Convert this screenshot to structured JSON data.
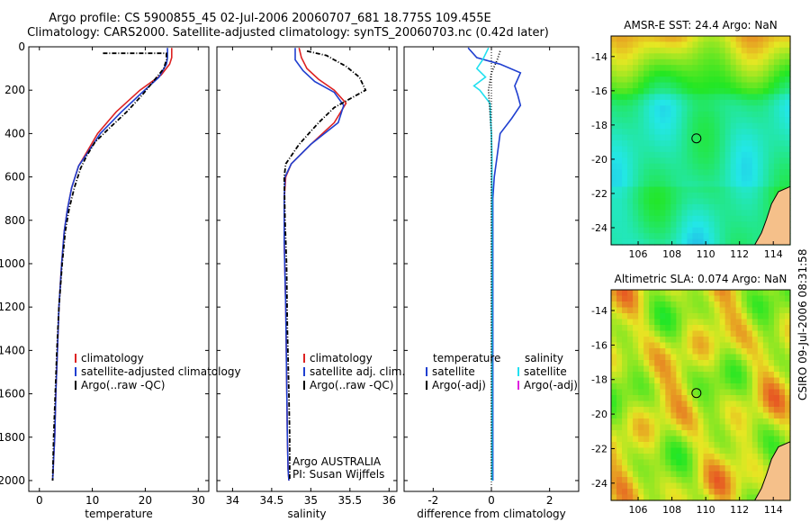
{
  "title": {
    "line1": "Argo profile: CS 5900855_45 02-Jul-2006 20060707_681 18.775S 109.455E",
    "line2": "Climatology: CARS2000. Satellite-adjusted climatology: synTS_20060703.nc (0.42d later)"
  },
  "credit": "CSIRO 09-Jul-2006 08:31:58",
  "colors": {
    "climatology": "#dd2222",
    "satellite": "#1f3fd0",
    "argo": "#000000",
    "satellite_salinity": "#22e0f0",
    "argo_salinity_adj": "#e020e0",
    "land": "#f5c08a"
  },
  "chart_data": [
    {
      "id": "temperature",
      "type": "line",
      "xlabel": "temperature",
      "xlim": [
        -2,
        32
      ],
      "xticks": [
        "0",
        "10",
        "20",
        "30"
      ],
      "xtick_values": [
        0,
        10,
        20,
        30
      ],
      "ylim": [
        0,
        2050
      ],
      "yticks": [
        "0",
        "200",
        "400",
        "600",
        "800",
        "1000",
        "1200",
        "1400",
        "1600",
        "1800",
        "2000"
      ],
      "ytick_values": [
        0,
        200,
        400,
        600,
        800,
        1000,
        1200,
        1400,
        1600,
        1800,
        2000
      ],
      "legend": [
        "climatology",
        "satellite-adjusted climatology",
        "Argo(..raw -QC)"
      ],
      "series": [
        {
          "name": "climatology",
          "color_key": "climatology",
          "x": [
            25,
            25,
            24.6,
            23,
            19,
            14.5,
            11,
            8.6,
            7.4,
            6.1,
            5.3,
            4.7,
            4.2,
            3.7,
            3.4,
            3.1,
            2.9,
            2.7,
            2.5
          ],
          "y": [
            5,
            50,
            80,
            130,
            200,
            300,
            400,
            500,
            550,
            650,
            750,
            850,
            1000,
            1200,
            1400,
            1600,
            1800,
            1900,
            2000
          ]
        },
        {
          "name": "satellite-adjusted climatology",
          "color_key": "satellite",
          "x": [
            24.2,
            24.2,
            24,
            22.6,
            19,
            15.5,
            11.5,
            8.8,
            7.4,
            6.1,
            5.3,
            4.7,
            4.2,
            3.7,
            3.4,
            3.1,
            2.9,
            2.7,
            2.5
          ],
          "y": [
            5,
            50,
            80,
            140,
            220,
            300,
            400,
            500,
            550,
            650,
            750,
            850,
            1000,
            1200,
            1400,
            1600,
            1800,
            1900,
            2000
          ]
        },
        {
          "name": "Argo(..raw -QC)",
          "color_key": "argo",
          "dash": true,
          "x": [
            12,
            24,
            24,
            23.5,
            21.5,
            19.5,
            16.5,
            13,
            10.5,
            9,
            7.8,
            6.6,
            5.6,
            4.9,
            4.3,
            3.7,
            3.3,
            3,
            2.7,
            2.5
          ],
          "y": [
            30,
            30,
            60,
            100,
            160,
            220,
            300,
            380,
            440,
            500,
            560,
            650,
            750,
            850,
            1000,
            1200,
            1400,
            1600,
            1800,
            2000
          ]
        }
      ]
    },
    {
      "id": "salinity",
      "type": "line",
      "xlabel": "salinity",
      "xlim": [
        33.8,
        36.1
      ],
      "xticks": [
        "34",
        "34.5",
        "35",
        "35.5",
        "36"
      ],
      "xtick_values": [
        34,
        34.5,
        35,
        35.5,
        36
      ],
      "ylim": [
        0,
        2050
      ],
      "legend": [
        "climatology",
        "satellite adj. clim.",
        "Argo(..raw -QC)"
      ],
      "annotations": [
        "Argo AUSTRALIA",
        "PI: Susan Wijffels"
      ],
      "series": [
        {
          "name": "climatology",
          "color_key": "climatology",
          "x": [
            34.85,
            34.88,
            34.95,
            35.1,
            35.3,
            35.45,
            35.3,
            35.0,
            34.75,
            34.68,
            34.66,
            34.66,
            34.68,
            34.69,
            34.7,
            34.71,
            34.72
          ],
          "y": [
            5,
            50,
            100,
            150,
            200,
            260,
            350,
            450,
            540,
            600,
            700,
            900,
            1200,
            1500,
            1800,
            1950,
            2000
          ]
        },
        {
          "name": "satellite adj. clim.",
          "color_key": "satellite",
          "x": [
            34.8,
            34.8,
            34.9,
            35.05,
            35.3,
            35.42,
            35.35,
            35.0,
            34.75,
            34.67,
            34.66,
            34.66,
            34.68,
            34.69,
            34.7,
            34.71,
            34.72
          ],
          "y": [
            5,
            60,
            110,
            160,
            210,
            270,
            350,
            450,
            540,
            600,
            700,
            900,
            1200,
            1500,
            1800,
            1950,
            2000
          ]
        },
        {
          "name": "Argo(..raw -QC)",
          "color_key": "argo",
          "dash": true,
          "x": [
            34.95,
            35.2,
            35.3,
            35.45,
            35.62,
            35.7,
            35.5,
            35.3,
            35.1,
            34.85,
            34.68,
            34.66,
            34.67,
            34.69,
            34.7,
            34.72,
            34.73,
            34.73
          ],
          "y": [
            20,
            40,
            60,
            90,
            140,
            200,
            240,
            280,
            350,
            450,
            540,
            600,
            800,
            1000,
            1300,
            1600,
            1800,
            2000
          ]
        }
      ]
    },
    {
      "id": "difference",
      "type": "line",
      "xlabel": "difference from climatology",
      "xlim": [
        -3,
        3
      ],
      "xticks": [
        "-2",
        "0",
        "2"
      ],
      "xtick_values": [
        -2,
        0,
        2
      ],
      "ylim": [
        0,
        2050
      ],
      "legend_left_title": "temperature",
      "legend_right_title": "salinity",
      "legend": [
        "satellite",
        "Argo(-adj)",
        "satellite",
        "Argo(-adj)"
      ],
      "series": [
        {
          "name": "temperature satellite",
          "color_key": "satellite",
          "x": [
            -0.8,
            -0.5,
            0.3,
            1.0,
            0.8,
            0.9,
            1.0,
            0.7,
            0.3,
            0.2,
            0.1,
            0.05,
            0.05,
            0.05,
            0.05
          ],
          "y": [
            5,
            50,
            80,
            120,
            180,
            220,
            270,
            330,
            400,
            500,
            600,
            700,
            1000,
            1500,
            2000
          ]
        },
        {
          "name": "salinity satellite",
          "color_key": "satellite_salinity",
          "x": [
            -0.1,
            -0.3,
            -0.5,
            -0.2,
            -0.6,
            -0.4,
            -0.05,
            -0.03,
            0.0,
            0.02,
            0.02,
            0.02,
            0.02,
            0.02
          ],
          "y": [
            5,
            60,
            100,
            140,
            180,
            200,
            260,
            320,
            400,
            500,
            700,
            1000,
            1500,
            2000
          ]
        },
        {
          "name": "Argo(-adj)",
          "color_key": "argo",
          "dotted": true,
          "x": [
            0.3,
            0.2,
            0.0,
            -0.1,
            0.0,
            0.0,
            0.0,
            0.0,
            0.0
          ],
          "y": [
            20,
            60,
            120,
            200,
            400,
            700,
            1000,
            1500,
            2000
          ]
        }
      ]
    },
    {
      "id": "sst_map",
      "type": "heatmap",
      "title": "AMSR-E SST: 24.4 Argo: NaN",
      "xticks": [
        "106",
        "108",
        "110",
        "112",
        "114"
      ],
      "xtick_values": [
        106,
        108,
        110,
        112,
        114
      ],
      "yticks": [
        "-14",
        "-16",
        "-18",
        "-20",
        "-22",
        "-24"
      ],
      "ytick_values": [
        -14,
        -16,
        -18,
        -20,
        -22,
        -24
      ],
      "xlim": [
        104.4,
        115
      ],
      "ylim": [
        -25,
        -12.8
      ],
      "marker": {
        "lon": 109.45,
        "lat": -18.78
      }
    },
    {
      "id": "sla_map",
      "type": "heatmap",
      "title": "Altimetric SLA: 0.074 Argo: NaN",
      "xticks": [
        "106",
        "108",
        "110",
        "112",
        "114"
      ],
      "xtick_values": [
        106,
        108,
        110,
        112,
        114
      ],
      "yticks": [
        "-14",
        "-16",
        "-18",
        "-20",
        "-22",
        "-24"
      ],
      "ytick_values": [
        -14,
        -16,
        -18,
        -20,
        -22,
        -24
      ],
      "xlim": [
        104.4,
        115
      ],
      "ylim": [
        -25,
        -12.8
      ],
      "marker": {
        "lon": 109.45,
        "lat": -18.78
      }
    }
  ]
}
